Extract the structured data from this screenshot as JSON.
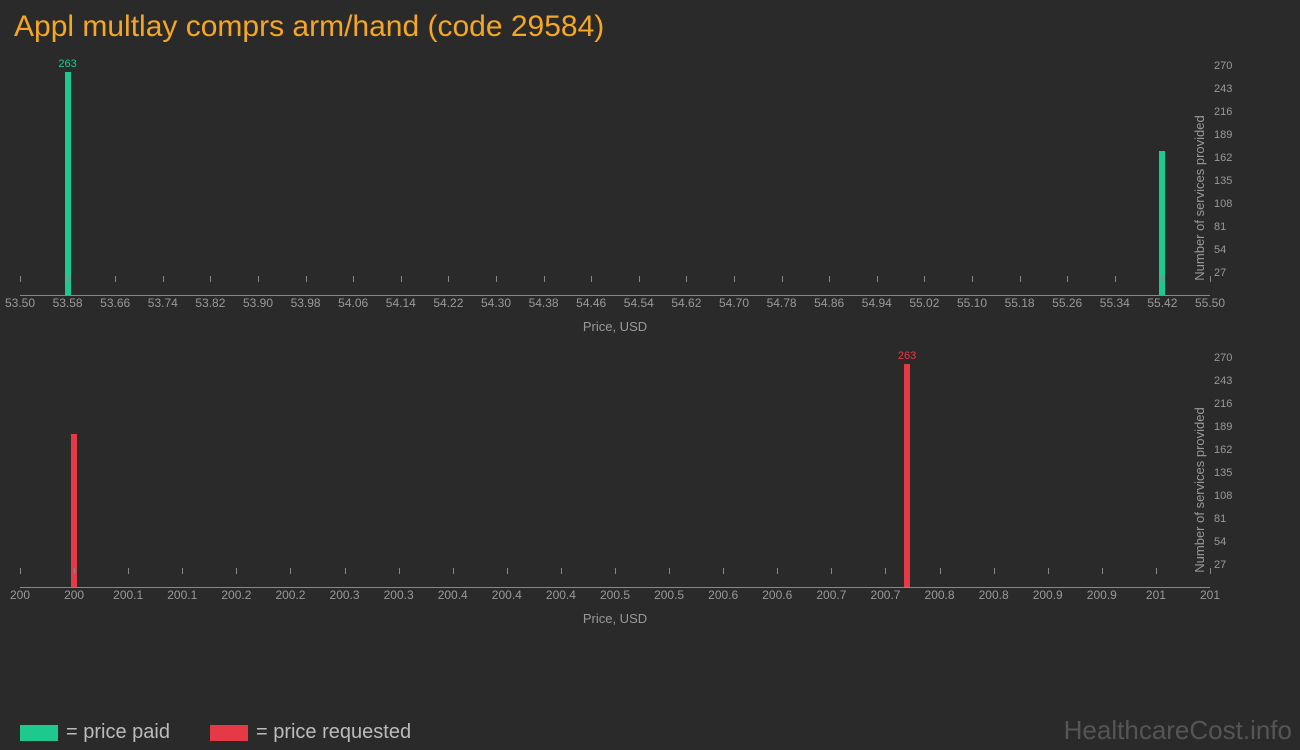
{
  "title": "Appl multlay comprs arm/hand (code 29584)",
  "background_color": "#2a2a2a",
  "title_color": "#f5a623",
  "axis_color": "#888888",
  "tick_color": "#999999",
  "colors": {
    "paid": "#1ec98d",
    "requested": "#e63946"
  },
  "chart1": {
    "type": "bar",
    "color_key": "paid",
    "xmin": 53.5,
    "xmax": 55.5,
    "xticks": [
      "53.50",
      "53.58",
      "53.66",
      "53.74",
      "53.82",
      "53.90",
      "53.98",
      "54.06",
      "54.14",
      "54.22",
      "54.30",
      "54.38",
      "54.46",
      "54.54",
      "54.62",
      "54.70",
      "54.78",
      "54.86",
      "54.94",
      "55.02",
      "55.10",
      "55.18",
      "55.26",
      "55.34",
      "55.42",
      "55.50"
    ],
    "ymin": 0,
    "ymax": 270,
    "yticks": [
      27,
      54,
      81,
      108,
      135,
      162,
      189,
      216,
      243,
      270
    ],
    "xlabel": "Price, USD",
    "ylabel": "Number of services provided",
    "bars": [
      {
        "x": 53.58,
        "y": 263,
        "label": "263"
      },
      {
        "x": 55.42,
        "y": 170,
        "label": ""
      }
    ]
  },
  "chart2": {
    "type": "bar",
    "color_key": "requested",
    "xmin": 199.95,
    "xmax": 201.05,
    "xticks": [
      "200",
      "200",
      "200.1",
      "200.1",
      "200.2",
      "200.2",
      "200.3",
      "200.3",
      "200.4",
      "200.4",
      "200.4",
      "200.5",
      "200.5",
      "200.6",
      "200.6",
      "200.7",
      "200.7",
      "200.8",
      "200.8",
      "200.9",
      "200.9",
      "201",
      "201"
    ],
    "ymin": 0,
    "ymax": 270,
    "yticks": [
      27,
      54,
      81,
      108,
      135,
      162,
      189,
      216,
      243,
      270
    ],
    "xlabel": "Price, USD",
    "ylabel": "Number of services provided",
    "bars": [
      {
        "x": 200.0,
        "y": 180,
        "label": ""
      },
      {
        "x": 200.77,
        "y": 263,
        "label": "263"
      }
    ]
  },
  "legend": [
    {
      "color_key": "paid",
      "label": "= price paid"
    },
    {
      "color_key": "requested",
      "label": "= price requested"
    }
  ],
  "watermark": "HealthcareCost.info"
}
